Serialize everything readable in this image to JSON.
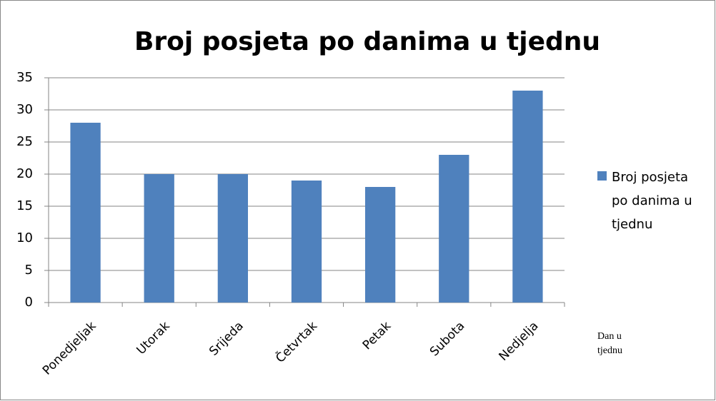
{
  "chart_data": {
    "type": "bar",
    "title": "Broj posjeta po danima u tjednu",
    "categories": [
      "Ponedjeljak",
      "Utorak",
      "Srijeda",
      "Četvrtak",
      "Petak",
      "Subota",
      "Nedjelja"
    ],
    "series": [
      {
        "name": "Broj posjeta po danima u tjednu",
        "color": "#4f81bd",
        "values": [
          28,
          20,
          20,
          19,
          18,
          23,
          33
        ]
      }
    ],
    "x_label": "Dan u tjednu",
    "ylim": [
      0,
      35
    ],
    "yticks": [
      0,
      5,
      10,
      15,
      20,
      25,
      30,
      35
    ],
    "grid": true,
    "legend": "right"
  }
}
